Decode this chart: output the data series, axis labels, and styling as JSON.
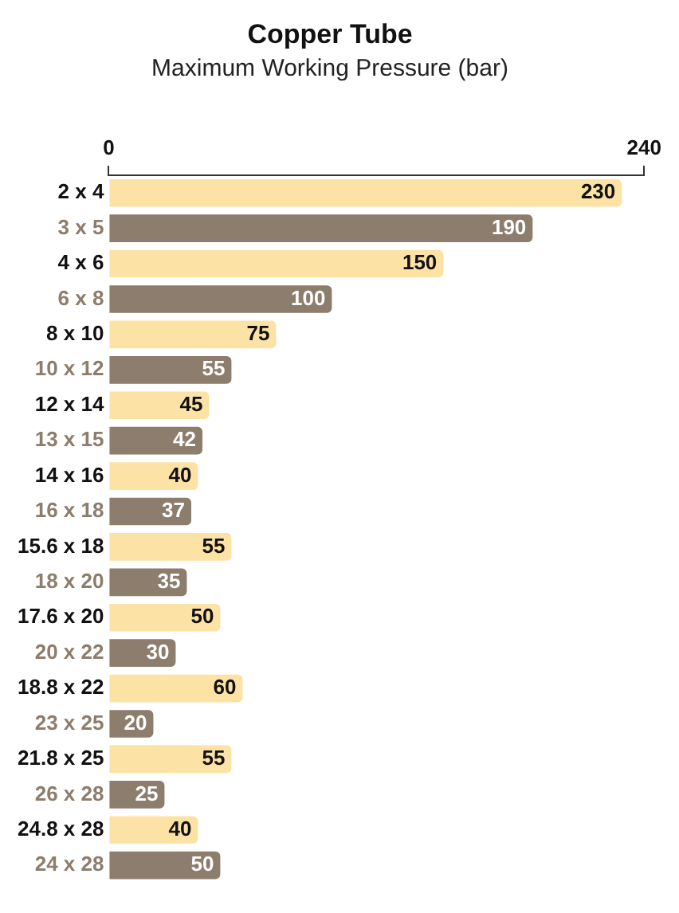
{
  "chart_data": {
    "type": "bar",
    "orientation": "horizontal",
    "title": "Copper Tube",
    "subtitle": "Maximum Working Pressure (bar)",
    "categories": [
      "2 x 4",
      "3 x 5",
      "4 x 6",
      "6 x 8",
      "8 x 10",
      "10 x 12",
      "12 x 14",
      "13 x 15",
      "14 x 16",
      "16 x 18",
      "15.6 x 18",
      "18 x 20",
      "17.6 x 20",
      "20 x 22",
      "18.8 x 22",
      "23 x 25",
      "21.8 x 25",
      "26 x 28",
      "24.8 x 28",
      "24 x 28"
    ],
    "values": [
      230,
      190,
      150,
      100,
      75,
      55,
      45,
      42,
      40,
      37,
      55,
      35,
      50,
      30,
      60,
      20,
      55,
      25,
      40,
      50
    ],
    "colors": [
      "#fde2a6",
      "#8c7d6d",
      "#fde2a6",
      "#8c7d6d",
      "#fde2a6",
      "#8c7d6d",
      "#fde2a6",
      "#8c7d6d",
      "#fde2a6",
      "#8c7d6d",
      "#fde2a6",
      "#8c7d6d",
      "#fde2a6",
      "#8c7d6d",
      "#fde2a6",
      "#8c7d6d",
      "#fde2a6",
      "#8c7d6d",
      "#fde2a6",
      "#8c7d6d"
    ],
    "xlim": [
      0,
      240
    ],
    "xticks": [
      0,
      240
    ],
    "data_labels": true,
    "grid": false,
    "legend": false
  }
}
